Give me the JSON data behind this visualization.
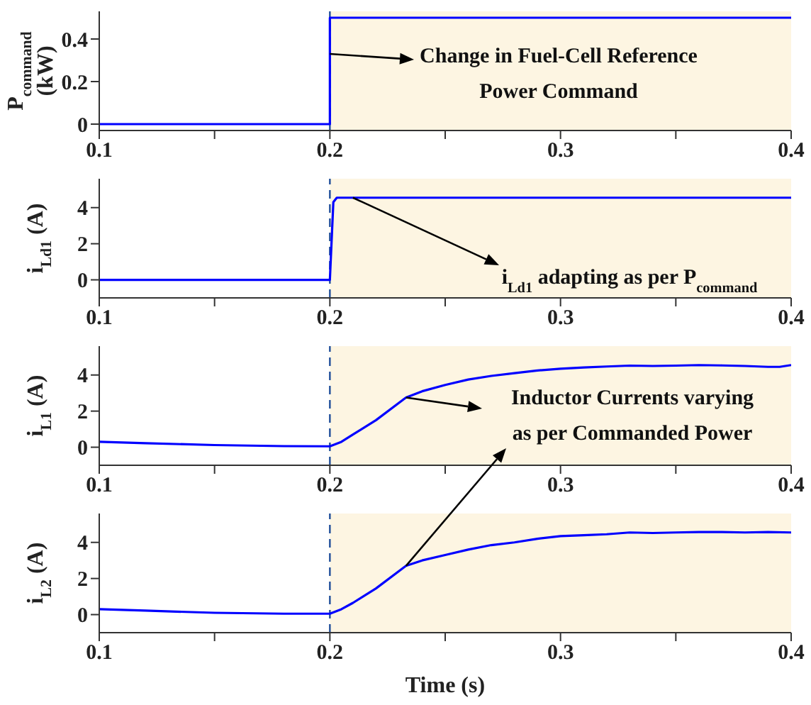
{
  "chart_data": [
    {
      "type": "line",
      "ylabel": "P$_{command}$ (kW)",
      "xlim": [
        0.1,
        0.4
      ],
      "ylim": [
        -0.03,
        0.53
      ],
      "yticks": [
        0,
        0.2,
        0.4
      ],
      "xticks": [
        0.1,
        {
          "value": 0.15,
          "label": null
        },
        0.2,
        {
          "value": 0.25,
          "label": null
        },
        0.3,
        {
          "value": 0.35,
          "label": null
        },
        0.4
      ],
      "series": [
        {
          "color": "#0000ff",
          "x": [
            0.1,
            0.2,
            0.2,
            0.4
          ],
          "values": [
            0,
            0,
            0.5,
            0.5
          ]
        }
      ],
      "bands": [
        {
          "axis": "x",
          "from": 0.2,
          "to": 0.4,
          "color": "#fdf5e2"
        }
      ],
      "ref_lines": [
        {
          "axis": "x",
          "value": 0.2,
          "color": "#1f4e9a",
          "line_style": "dashed"
        }
      ],
      "annotations": [
        {
          "text": "Change in Fuel-Cell Reference Power Command",
          "x": 0.2,
          "y": 0.33
        }
      ]
    },
    {
      "type": "line",
      "ylabel": "i$_{Ld1}$ (A)",
      "xlim": [
        0.1,
        0.4
      ],
      "ylim": [
        -1,
        5.6
      ],
      "yticks": [
        0,
        2,
        4
      ],
      "xticks": [
        0.1,
        {
          "value": 0.15,
          "label": null
        },
        0.2,
        {
          "value": 0.25,
          "label": null
        },
        0.3,
        {
          "value": 0.35,
          "label": null
        },
        0.4
      ],
      "series": [
        {
          "color": "#0000ff",
          "x": [
            0.1,
            0.2,
            0.2015,
            0.203,
            0.4
          ],
          "values": [
            0,
            0,
            4.3,
            4.55,
            4.55
          ]
        }
      ],
      "bands": [
        {
          "axis": "x",
          "from": 0.2,
          "to": 0.4,
          "color": "#fdf5e2"
        }
      ],
      "ref_lines": [
        {
          "axis": "x",
          "value": 0.2,
          "color": "#1f4e9a",
          "line_style": "dashed"
        }
      ],
      "annotations": [
        {
          "text": "i$_{Ld1}$ adapting as per P$_{command}$",
          "x": 0.21,
          "y": 4.55
        }
      ]
    },
    {
      "type": "line",
      "ylabel": "i$_{L1}$ (A)",
      "xlim": [
        0.1,
        0.4
      ],
      "ylim": [
        -1,
        5.6
      ],
      "yticks": [
        0,
        2,
        4
      ],
      "xticks": [
        0.1,
        {
          "value": 0.15,
          "label": null
        },
        0.2,
        {
          "value": 0.25,
          "label": null
        },
        0.3,
        {
          "value": 0.35,
          "label": null
        },
        0.4
      ],
      "series": [
        {
          "color": "#0000ff",
          "x": [
            0.1,
            0.12,
            0.15,
            0.18,
            0.2,
            0.205,
            0.21,
            0.22,
            0.233,
            0.24,
            0.25,
            0.26,
            0.27,
            0.28,
            0.29,
            0.3,
            0.31,
            0.32,
            0.33,
            0.34,
            0.35,
            0.36,
            0.37,
            0.38,
            0.39,
            0.395,
            0.4
          ],
          "values": [
            0.3,
            0.22,
            0.12,
            0.06,
            0.05,
            0.3,
            0.7,
            1.5,
            2.75,
            3.1,
            3.45,
            3.75,
            3.95,
            4.1,
            4.25,
            4.35,
            4.42,
            4.47,
            4.52,
            4.5,
            4.52,
            4.55,
            4.53,
            4.5,
            4.45,
            4.45,
            4.55
          ]
        }
      ],
      "bands": [
        {
          "axis": "x",
          "from": 0.2,
          "to": 0.4,
          "color": "#fdf5e2"
        }
      ],
      "ref_lines": [
        {
          "axis": "x",
          "value": 0.2,
          "color": "#1f4e9a",
          "line_style": "dashed"
        }
      ],
      "annotations": [
        "Inductor Currents varying as per Commanded Power"
      ]
    },
    {
      "type": "line",
      "ylabel": "i$_{L2}$ (A)",
      "xlabel": "Time (s)",
      "xlim": [
        0.1,
        0.4
      ],
      "ylim": [
        -1,
        5.6
      ],
      "yticks": [
        0,
        2,
        4
      ],
      "xticks": [
        0.1,
        {
          "value": 0.15,
          "label": null
        },
        0.2,
        {
          "value": 0.25,
          "label": null
        },
        0.3,
        {
          "value": 0.35,
          "label": null
        },
        0.4
      ],
      "series": [
        {
          "color": "#0000ff",
          "x": [
            0.1,
            0.12,
            0.15,
            0.18,
            0.2,
            0.205,
            0.21,
            0.22,
            0.233,
            0.24,
            0.25,
            0.26,
            0.27,
            0.28,
            0.29,
            0.3,
            0.31,
            0.32,
            0.33,
            0.34,
            0.35,
            0.36,
            0.37,
            0.38,
            0.39,
            0.4
          ],
          "values": [
            0.3,
            0.22,
            0.1,
            0.05,
            0.05,
            0.3,
            0.65,
            1.45,
            2.7,
            3.0,
            3.3,
            3.6,
            3.85,
            4.0,
            4.2,
            4.35,
            4.4,
            4.45,
            4.55,
            4.52,
            4.55,
            4.57,
            4.57,
            4.55,
            4.57,
            4.55
          ]
        }
      ],
      "bands": [
        {
          "axis": "x",
          "from": 0.2,
          "to": 0.4,
          "color": "#fdf5e2"
        }
      ],
      "ref_lines": [
        {
          "axis": "x",
          "value": 0.2,
          "color": "#1f4e9a",
          "line_style": "dashed"
        }
      ]
    }
  ]
}
